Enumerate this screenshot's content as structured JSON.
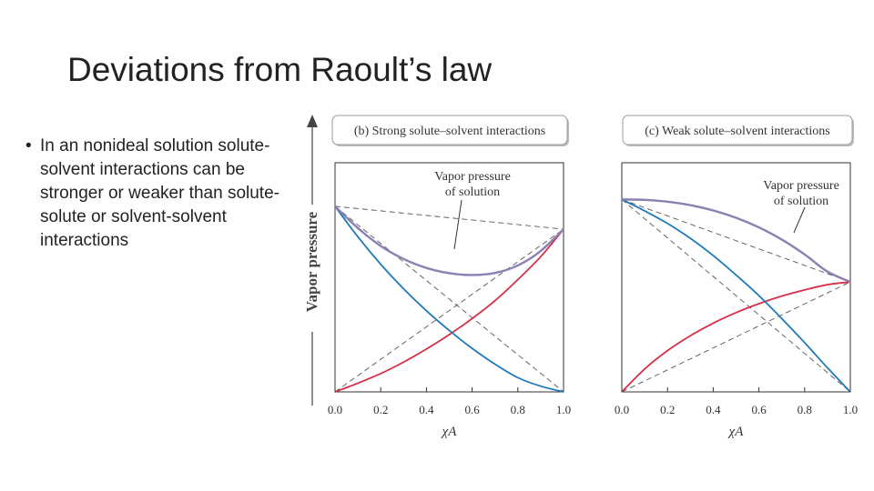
{
  "slide": {
    "title": "Deviations from Raoult’s law",
    "bullet": "In an nonideal solution solute-solvent interactions can be stronger or weaker than solute-solute or solvent-solvent interactions"
  },
  "figure": {
    "ylabel": "Vapor pressure",
    "xlabel": "χA"
  },
  "chart_data": [
    {
      "type": "line",
      "panel_title": "(b) Strong solute–solvent interactions",
      "annotation": "Vapor pressure\nof solution",
      "xlabel": "χA",
      "ylabel": "Vapor pressure",
      "x_ticks": [
        "0.0",
        "0.2",
        "0.4",
        "0.6",
        "0.8",
        "1.0"
      ],
      "xlim": [
        0,
        1
      ],
      "ylim": [
        0,
        1
      ],
      "pure_pressures": {
        "at_x0": 0.81,
        "at_x1": 0.71
      },
      "series": [
        {
          "color": "#d62f49",
          "x": [
            0,
            0.1,
            0.2,
            0.3,
            0.4,
            0.5,
            0.6,
            0.7,
            0.8,
            0.9,
            1.0
          ],
          "y": [
            0,
            0.038,
            0.08,
            0.13,
            0.187,
            0.25,
            0.32,
            0.398,
            0.49,
            0.59,
            0.71
          ]
        },
        {
          "color": "#1f7ab8",
          "x": [
            0,
            0.1,
            0.2,
            0.3,
            0.4,
            0.5,
            0.6,
            0.7,
            0.8,
            0.9,
            1.0
          ],
          "y": [
            0.81,
            0.677,
            0.557,
            0.45,
            0.354,
            0.268,
            0.19,
            0.121,
            0.062,
            0.025,
            0
          ]
        },
        {
          "color": "#8c7fb2",
          "x": [
            0,
            0.1,
            0.2,
            0.3,
            0.4,
            0.5,
            0.6,
            0.7,
            0.8,
            0.9,
            1.0
          ],
          "y": [
            0.81,
            0.715,
            0.637,
            0.58,
            0.541,
            0.518,
            0.51,
            0.519,
            0.552,
            0.615,
            0.71
          ]
        }
      ],
      "ideal_lines": [
        {
          "x": [
            0,
            1
          ],
          "y": [
            0,
            0.71
          ]
        },
        {
          "x": [
            0,
            1
          ],
          "y": [
            0.81,
            0
          ]
        },
        {
          "x": [
            0,
            1
          ],
          "y": [
            0.81,
            0.71
          ]
        }
      ]
    },
    {
      "type": "line",
      "panel_title": "(c) Weak solute–solvent interactions",
      "annotation": "Vapor pressure\nof solution",
      "xlabel": "χA",
      "ylabel": "Vapor pressure",
      "x_ticks": [
        "0.0",
        "0.2",
        "0.4",
        "0.6",
        "0.8",
        "1.0"
      ],
      "xlim": [
        0,
        1
      ],
      "ylim": [
        0,
        1
      ],
      "pure_pressures": {
        "at_x0": 0.84,
        "at_x1": 0.48
      },
      "series": [
        {
          "color": "#d62f49",
          "x": [
            0,
            0.1,
            0.2,
            0.3,
            0.4,
            0.5,
            0.6,
            0.7,
            0.8,
            0.9,
            1.0
          ],
          "y": [
            0,
            0.1,
            0.18,
            0.245,
            0.3,
            0.346,
            0.385,
            0.418,
            0.445,
            0.468,
            0.48
          ]
        },
        {
          "color": "#1f7ab8",
          "x": [
            0,
            0.1,
            0.2,
            0.3,
            0.4,
            0.5,
            0.6,
            0.7,
            0.8,
            0.9,
            1.0
          ],
          "y": [
            0.84,
            0.79,
            0.735,
            0.67,
            0.595,
            0.51,
            0.42,
            0.32,
            0.215,
            0.105,
            0
          ]
        },
        {
          "color": "#8c7fb2",
          "x": [
            0,
            0.1,
            0.2,
            0.3,
            0.4,
            0.5,
            0.6,
            0.7,
            0.8,
            0.9,
            1.0
          ],
          "y": [
            0.84,
            0.838,
            0.83,
            0.815,
            0.792,
            0.76,
            0.718,
            0.665,
            0.6,
            0.525,
            0.48
          ]
        }
      ],
      "ideal_lines": [
        {
          "x": [
            0,
            1
          ],
          "y": [
            0,
            0.48
          ]
        },
        {
          "x": [
            0,
            1
          ],
          "y": [
            0.84,
            0
          ]
        },
        {
          "x": [
            0,
            1
          ],
          "y": [
            0.84,
            0.48
          ]
        }
      ]
    }
  ]
}
